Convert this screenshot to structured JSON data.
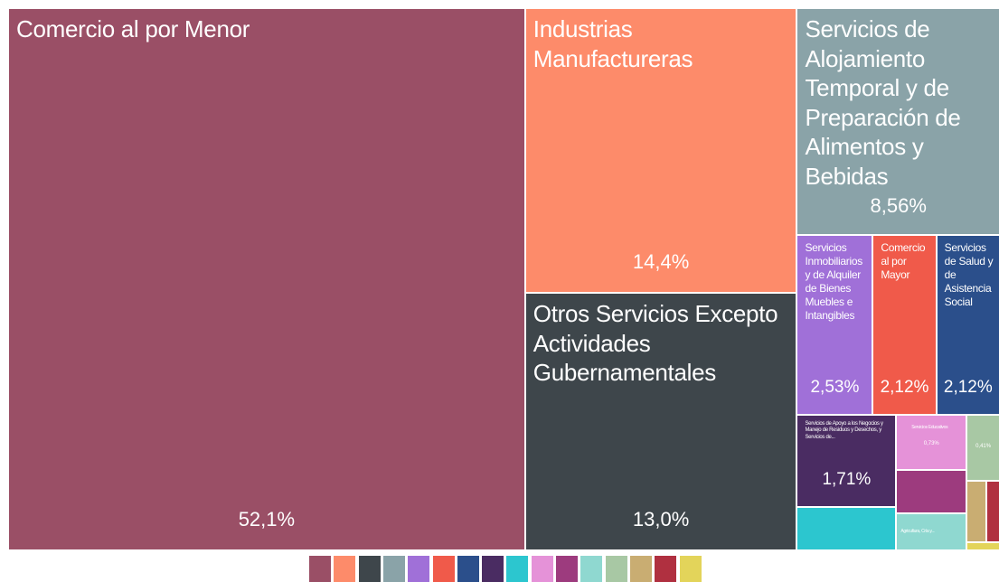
{
  "chart_data": {
    "type": "treemap",
    "categories": [
      "Comercio al por Menor",
      "Industrias Manufactureras",
      "Otros Servicios Excepto Actividades Gubernamentales",
      "Servicios de Alojamiento Temporal y de Preparación de Alimentos y Bebidas",
      "Servicios Inmobiliarios y de Alquiler de Bienes Muebles e Intangibles",
      "Comercio al por Mayor",
      "Servicios de Salud y de Asistencia Social",
      "Servicios de Apoyo a los Negocios y Manejo de Residuos y Desechos, y Servicios de...",
      null,
      "Servicios Educativos",
      null,
      "Agricultura, Cría y...",
      null,
      null,
      null,
      null
    ],
    "values": [
      52.1,
      14.4,
      13.0,
      8.56,
      2.53,
      2.12,
      2.12,
      1.71,
      0.8,
      0.73,
      0.57,
      0.48,
      0.41,
      0.23,
      0.15,
      0.05
    ],
    "value_labels": [
      "52,1%",
      "14,4%",
      "13,0%",
      "8,56%",
      "2,53%",
      "2,12%",
      "2,12%",
      "1,71%",
      null,
      "0,73%",
      null,
      null,
      "0,41%",
      null,
      null,
      null
    ],
    "colors": [
      "#9a4f66",
      "#fd8b6a",
      "#3e464b",
      "#8aa3a8",
      "#a070d8",
      "#f05a4a",
      "#2b4f8b",
      "#4a2c62",
      "#2cc6cf",
      "#e592d8",
      "#9d3b7e",
      "#8fd8d0",
      "#a8c8a4",
      "#c9ad72",
      "#b03040",
      "#e3d45a"
    ]
  }
}
